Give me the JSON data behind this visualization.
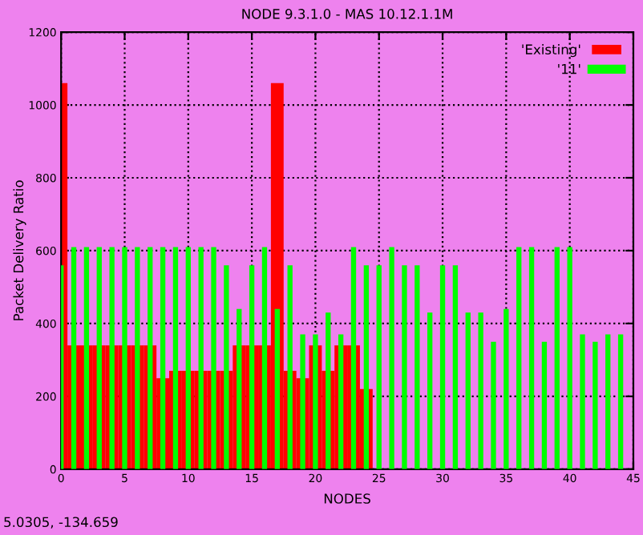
{
  "chart_data": {
    "type": "bar",
    "title": "NODE 9.3.1.0 - MAS 10.12.1.1M",
    "xlabel": "NODES",
    "ylabel": "Packet Delivery Ratio",
    "annotations": [
      "5.0305, -134.659"
    ],
    "series": [
      {
        "name": "'Existing'",
        "color": "#ff0000",
        "x": [
          0,
          1,
          2,
          3,
          4,
          5,
          6,
          7,
          8,
          9,
          10,
          11,
          12,
          13,
          14,
          15,
          16,
          17,
          18,
          19,
          20,
          21,
          22,
          23,
          24
        ],
        "values": [
          1060,
          340,
          340,
          340,
          340,
          340,
          340,
          340,
          250,
          270,
          270,
          270,
          270,
          270,
          340,
          340,
          340,
          1060,
          270,
          250,
          340,
          270,
          340,
          340,
          220
        ]
      },
      {
        "name": "'11'",
        "color": "#00ff00",
        "x": [
          0,
          1,
          2,
          3,
          4,
          5,
          6,
          7,
          8,
          9,
          10,
          11,
          12,
          13,
          14,
          15,
          16,
          17,
          18,
          19,
          20,
          21,
          22,
          23,
          24,
          25,
          26,
          27,
          28,
          29,
          30,
          31,
          32,
          33,
          34,
          35,
          36,
          37,
          38,
          39,
          40,
          41,
          42,
          43,
          44
        ],
        "values": [
          560,
          610,
          610,
          610,
          610,
          610,
          610,
          610,
          610,
          610,
          610,
          610,
          610,
          560,
          440,
          560,
          610,
          440,
          560,
          370,
          370,
          430,
          370,
          610,
          560,
          560,
          610,
          560,
          560,
          430,
          560,
          560,
          430,
          430,
          350,
          440,
          610,
          610,
          350,
          610,
          610,
          370,
          350,
          370,
          370
        ]
      }
    ],
    "xlim": [
      0,
      45
    ],
    "xticks": [
      0,
      5,
      10,
      15,
      20,
      25,
      30,
      35,
      40,
      45
    ],
    "ylim": [
      0,
      1200
    ],
    "yticks": [
      0,
      200,
      400,
      600,
      800,
      1000,
      1200
    ],
    "grid": true,
    "legend": "top right"
  }
}
